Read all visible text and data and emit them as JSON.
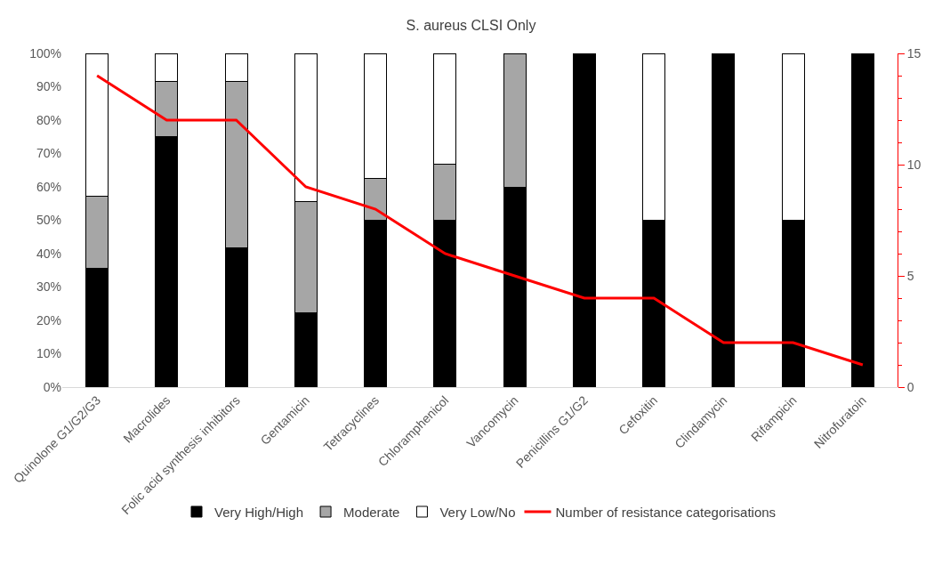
{
  "chart_data": {
    "type": "bar",
    "title": "S. aureus CLSI Only",
    "stacked": true,
    "categories": [
      "Quinolone G1/G2/G3",
      "Macrolides",
      "Folic acid synthesis inhibitors",
      "Gentamicin",
      "Tetracyclines",
      "Chloramphenicol",
      "Vancomycin",
      "Penicillins G1/G2",
      "Cefoxitin",
      "Clindamycin",
      "Rifampicin",
      "Nitrofuratoin"
    ],
    "series": [
      {
        "name": "Very High/High",
        "color": "#000000",
        "values": [
          35.7,
          75,
          41.7,
          22.2,
          50,
          50,
          60,
          100,
          50,
          100,
          50,
          100
        ]
      },
      {
        "name": "Moderate",
        "color": "#a6a6a6",
        "values": [
          21.4,
          16.7,
          50,
          33.3,
          12.5,
          16.7,
          40,
          0,
          0,
          0,
          0,
          0
        ]
      },
      {
        "name": "Very Low/No",
        "color": "#ffffff",
        "values": [
          42.9,
          8.3,
          8.3,
          44.5,
          37.5,
          33.3,
          0,
          0,
          50,
          0,
          50,
          0
        ]
      },
      {
        "name": "Number of resistance categorisations",
        "type": "line",
        "axis": "y2",
        "color": "#ff0000",
        "values": [
          14,
          12,
          12,
          9,
          8,
          6,
          5,
          4,
          4,
          2,
          2,
          1
        ]
      }
    ],
    "ylim": [
      0,
      100
    ],
    "yticks": [
      {
        "value": 0,
        "label": "0%"
      },
      {
        "value": 10,
        "label": "10%"
      },
      {
        "value": 20,
        "label": "20%"
      },
      {
        "value": 30,
        "label": "30%"
      },
      {
        "value": 40,
        "label": "40%"
      },
      {
        "value": 50,
        "label": "50%"
      },
      {
        "value": 60,
        "label": "60%"
      },
      {
        "value": 70,
        "label": "70%"
      },
      {
        "value": 80,
        "label": "80%"
      },
      {
        "value": 90,
        "label": "90%"
      },
      {
        "value": 100,
        "label": "100%"
      }
    ],
    "y2lim": [
      0,
      15
    ],
    "y2ticks": [
      0,
      5,
      10,
      15
    ],
    "grid": false,
    "legend": "bottom",
    "marker": "none",
    "line_style": "solid"
  }
}
